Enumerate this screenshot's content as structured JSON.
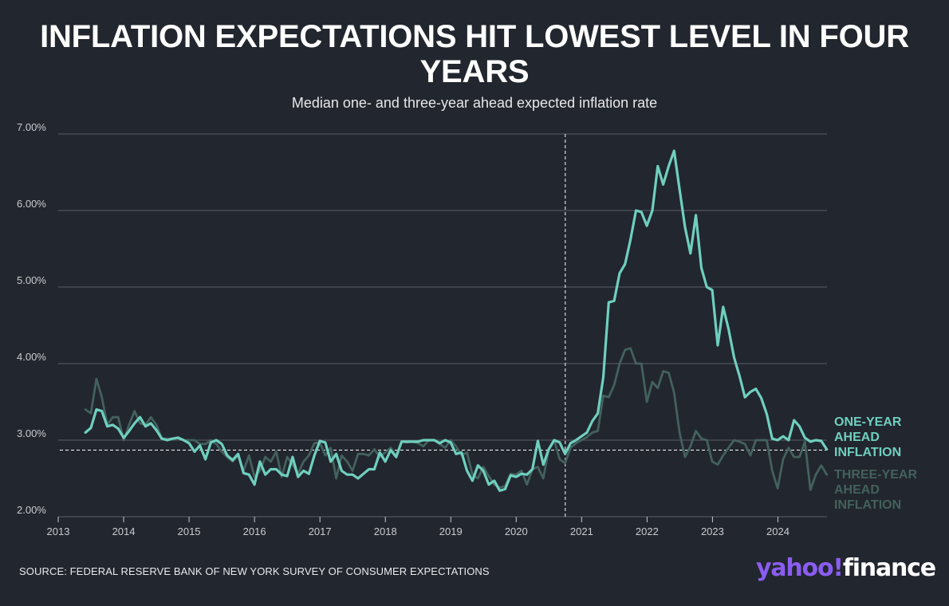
{
  "header": {
    "title": "INFLATION EXPECTATIONS HIT LOWEST LEVEL IN FOUR YEARS",
    "subtitle": "Median one- and three-year ahead expected inflation rate"
  },
  "footer": {
    "source": "SOURCE: FEDERAL RESERVE BANK OF NEW YORK SURVEY OF CONSUMER EXPECTATIONS",
    "logo_yahoo": "yahoo!",
    "logo_finance": "finance"
  },
  "legend": {
    "one_year": [
      "ONE-YEAR",
      "AHEAD",
      "INFLATION"
    ],
    "three_year": [
      "THREE-YEAR",
      "AHEAD",
      "INFLATION"
    ]
  },
  "colors": {
    "background": "#22262e",
    "one_year": "#6fcfbf",
    "three_year": "#43615d",
    "grid": "#50545c",
    "axis_text": "#c9ccd0",
    "logo_purple": "#8a5df2"
  },
  "chart_data": {
    "type": "line",
    "x_ticks": [
      "2013",
      "2014",
      "2015",
      "2016",
      "2017",
      "2018",
      "2019",
      "2020",
      "2021",
      "2022",
      "2023",
      "2024"
    ],
    "y_ticks": [
      "2.00%",
      "3.00%",
      "4.00%",
      "5.00%",
      "6.00%",
      "7.00%"
    ],
    "xlim": [
      2013,
      2024.75
    ],
    "ylim": [
      2.0,
      7.0
    ],
    "grid": "horizontal",
    "reference_x": 2020.75,
    "reference_y": 2.87,
    "legend_placement": "right",
    "series": [
      {
        "name": "ONE-YEAR AHEAD INFLATION",
        "start": 2013.417,
        "step": 0.0833,
        "values": [
          3.1,
          3.16,
          3.4,
          3.38,
          3.18,
          3.2,
          3.15,
          3.03,
          3.12,
          3.22,
          3.3,
          3.18,
          3.22,
          3.13,
          3.02,
          3.0,
          3.02,
          3.03,
          3.0,
          2.96,
          2.85,
          2.93,
          2.75,
          2.97,
          3.0,
          2.95,
          2.8,
          2.74,
          2.82,
          2.57,
          2.55,
          2.42,
          2.72,
          2.55,
          2.62,
          2.62,
          2.55,
          2.53,
          2.78,
          2.52,
          2.6,
          2.56,
          2.8,
          2.99,
          2.97,
          2.72,
          2.82,
          2.6,
          2.55,
          2.55,
          2.5,
          2.56,
          2.62,
          2.62,
          2.84,
          2.72,
          2.87,
          2.78,
          2.98,
          2.98,
          2.98,
          2.98,
          3.0,
          3.0,
          3.0,
          2.96,
          3.0,
          2.97,
          2.82,
          2.84,
          2.6,
          2.47,
          2.67,
          2.6,
          2.42,
          2.47,
          2.34,
          2.36,
          2.54,
          2.52,
          2.56,
          2.55,
          2.62,
          2.99,
          2.68,
          2.88,
          3.0,
          2.97,
          2.82,
          2.96,
          3.0,
          3.05,
          3.1,
          3.25,
          3.35,
          3.82,
          4.8,
          4.82,
          5.18,
          5.3,
          5.62,
          6.0,
          5.98,
          5.8,
          6.0,
          6.58,
          6.34,
          6.58,
          6.78,
          6.28,
          5.78,
          5.44,
          5.94,
          5.25,
          5.0,
          4.96,
          4.24,
          4.74,
          4.45,
          4.08,
          3.84,
          3.56,
          3.63,
          3.67,
          3.55,
          3.34,
          3.02,
          3.0,
          3.05,
          3.0,
          3.26,
          3.18,
          3.03,
          2.98,
          3.0,
          2.99,
          2.88
        ]
      },
      {
        "name": "THREE-YEAR AHEAD INFLATION",
        "start": 2013.417,
        "step": 0.0833,
        "values": [
          3.4,
          3.35,
          3.8,
          3.56,
          3.2,
          3.3,
          3.3,
          3.0,
          3.2,
          3.38,
          3.22,
          3.2,
          3.3,
          3.2,
          3.02,
          3.02,
          3.02,
          3.04,
          3.0,
          3.0,
          3.0,
          2.95,
          2.95,
          3.0,
          2.95,
          2.85,
          2.78,
          2.72,
          2.8,
          2.6,
          2.8,
          2.52,
          2.6,
          2.78,
          2.72,
          2.85,
          2.52,
          2.78,
          2.68,
          2.56,
          2.72,
          2.8,
          2.96,
          2.97,
          2.8,
          2.9,
          2.5,
          2.8,
          2.72,
          2.6,
          2.82,
          2.82,
          2.8,
          2.88,
          2.78,
          2.84,
          2.9,
          2.8,
          2.98,
          2.97,
          2.98,
          2.96,
          2.92,
          3.0,
          3.0,
          2.95,
          2.9,
          3.0,
          2.92,
          2.8,
          2.84,
          2.55,
          2.5,
          2.65,
          2.53,
          2.42,
          2.38,
          2.4,
          2.56,
          2.55,
          2.6,
          2.42,
          2.62,
          2.65,
          2.5,
          2.88,
          3.0,
          2.75,
          2.7,
          2.9,
          2.96,
          3.0,
          3.04,
          3.1,
          3.12,
          3.58,
          3.56,
          3.72,
          4.0,
          4.18,
          4.2,
          4.0,
          4.0,
          3.5,
          3.76,
          3.68,
          3.9,
          3.88,
          3.62,
          3.1,
          2.78,
          2.92,
          3.12,
          3.02,
          3.0,
          2.72,
          2.68,
          2.8,
          2.9,
          3.0,
          2.98,
          2.95,
          2.8,
          3.0,
          3.0,
          3.0,
          2.6,
          2.37,
          2.75,
          2.9,
          2.78,
          2.78,
          2.98,
          2.35,
          2.55,
          2.67,
          2.55
        ]
      }
    ]
  }
}
